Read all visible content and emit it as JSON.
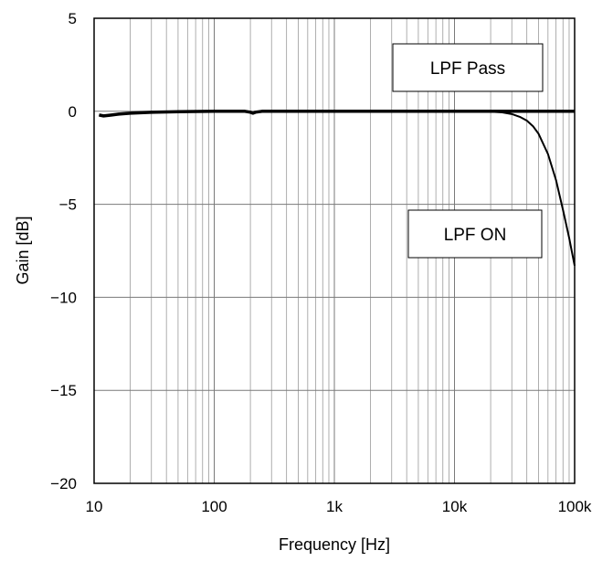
{
  "chart_data": {
    "type": "line",
    "xlabel": "Frequency [Hz]",
    "ylabel": "Gain [dB]",
    "x_scale": "log",
    "xlim": [
      10,
      100000
    ],
    "ylim": [
      -20,
      5
    ],
    "x_ticks": [
      {
        "value": 10,
        "label": "10"
      },
      {
        "value": 100,
        "label": "100"
      },
      {
        "value": 1000,
        "label": "1k"
      },
      {
        "value": 10000,
        "label": "10k"
      },
      {
        "value": 100000,
        "label": "100k"
      }
    ],
    "y_ticks": [
      {
        "value": 5,
        "label": "5"
      },
      {
        "value": 0,
        "label": "0"
      },
      {
        "value": -5,
        "label": "−5"
      },
      {
        "value": -10,
        "label": "−10"
      },
      {
        "value": -15,
        "label": "−15"
      },
      {
        "value": -20,
        "label": "−20"
      }
    ],
    "grid": true,
    "series": [
      {
        "name": "LPF Pass",
        "color": "#000000",
        "points": [
          [
            11,
            -0.2
          ],
          [
            12,
            -0.25
          ],
          [
            14,
            -0.2
          ],
          [
            16,
            -0.15
          ],
          [
            20,
            -0.1
          ],
          [
            30,
            -0.05
          ],
          [
            50,
            -0.02
          ],
          [
            100,
            0
          ],
          [
            180,
            0
          ],
          [
            200,
            -0.05
          ],
          [
            210,
            -0.1
          ],
          [
            220,
            -0.05
          ],
          [
            250,
            0
          ],
          [
            500,
            0
          ],
          [
            1000,
            0
          ],
          [
            10000,
            0
          ],
          [
            30000,
            0
          ],
          [
            100000,
            0
          ]
        ]
      },
      {
        "name": "LPF ON",
        "color": "#000000",
        "points": [
          [
            11,
            -0.2
          ],
          [
            12,
            -0.25
          ],
          [
            14,
            -0.2
          ],
          [
            16,
            -0.15
          ],
          [
            20,
            -0.1
          ],
          [
            30,
            -0.05
          ],
          [
            50,
            -0.02
          ],
          [
            100,
            0
          ],
          [
            180,
            0
          ],
          [
            200,
            -0.05
          ],
          [
            210,
            -0.1
          ],
          [
            220,
            -0.05
          ],
          [
            250,
            0
          ],
          [
            1000,
            0
          ],
          [
            10000,
            0
          ],
          [
            20000,
            -0.02
          ],
          [
            25000,
            -0.06
          ],
          [
            30000,
            -0.15
          ],
          [
            35000,
            -0.3
          ],
          [
            40000,
            -0.5
          ],
          [
            45000,
            -0.8
          ],
          [
            50000,
            -1.2
          ],
          [
            60000,
            -2.3
          ],
          [
            70000,
            -3.7
          ],
          [
            80000,
            -5.3
          ],
          [
            90000,
            -6.8
          ],
          [
            100000,
            -8.3
          ]
        ]
      }
    ],
    "annotations": [
      {
        "text": "LPF Pass"
      },
      {
        "text": "LPF ON"
      }
    ]
  }
}
